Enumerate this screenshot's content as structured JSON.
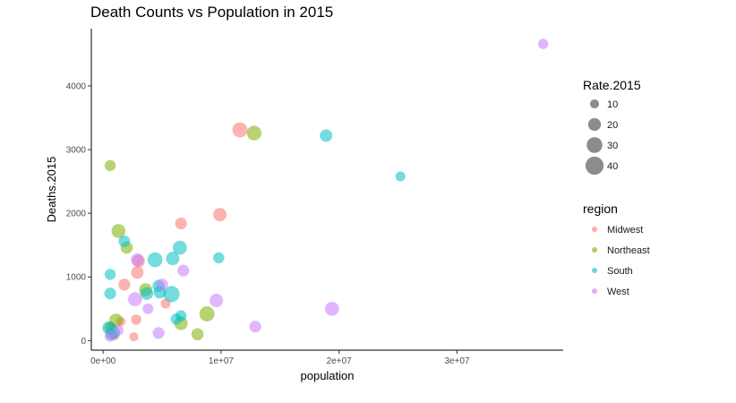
{
  "chart_data": {
    "type": "scatter",
    "title": "Death Counts vs Population in 2015",
    "xlabel": "population",
    "ylabel": "Deaths.2015",
    "xlim": [
      -1000000,
      39000000
    ],
    "ylim": [
      -150,
      4900
    ],
    "x_ticks": [
      0,
      10000000,
      20000000,
      30000000
    ],
    "x_tick_labels": [
      "0e+00",
      "1e+07",
      "2e+07",
      "3e+07"
    ],
    "y_ticks": [
      0,
      1000,
      2000,
      3000,
      4000
    ],
    "y_tick_labels": [
      "0",
      "1000",
      "2000",
      "3000",
      "4000"
    ],
    "grid": false,
    "size_legend": {
      "title": "Rate.2015",
      "values": [
        10,
        20,
        30,
        40
      ],
      "labels": [
        "10",
        "20",
        "30",
        "40"
      ]
    },
    "color_legend": {
      "title": "region",
      "position": "right",
      "entries": [
        {
          "label": "Midwest",
          "color": "#F8766D"
        },
        {
          "label": "Northeast",
          "color": "#7CAE00"
        },
        {
          "label": "South",
          "color": "#00BFC4"
        },
        {
          "label": "West",
          "color": "#C77CFF"
        }
      ]
    },
    "series": [
      {
        "region": "Midwest",
        "points": [
          {
            "x": 11600000,
            "y": 3310,
            "rate": 28
          },
          {
            "x": 9900000,
            "y": 1980,
            "rate": 22
          },
          {
            "x": 6600000,
            "y": 1840,
            "rate": 17
          },
          {
            "x": 3000000,
            "y": 1250,
            "rate": 20
          },
          {
            "x": 2900000,
            "y": 1070,
            "rate": 19
          },
          {
            "x": 1800000,
            "y": 880,
            "rate": 17
          },
          {
            "x": 5300000,
            "y": 580,
            "rate": 12
          },
          {
            "x": 2800000,
            "y": 330,
            "rate": 13
          },
          {
            "x": 1500000,
            "y": 300,
            "rate": 11
          },
          {
            "x": 2600000,
            "y": 60,
            "rate": 10
          },
          {
            "x": 1000000,
            "y": 80,
            "rate": 10
          },
          {
            "x": 700000,
            "y": 210,
            "rate": 12
          }
        ]
      },
      {
        "region": "Northeast",
        "points": [
          {
            "x": 12800000,
            "y": 3260,
            "rate": 26
          },
          {
            "x": 600000,
            "y": 2750,
            "rate": 15
          },
          {
            "x": 1300000,
            "y": 1720,
            "rate": 24
          },
          {
            "x": 2000000,
            "y": 1460,
            "rate": 18
          },
          {
            "x": 3600000,
            "y": 800,
            "rate": 21
          },
          {
            "x": 8800000,
            "y": 420,
            "rate": 28
          },
          {
            "x": 6600000,
            "y": 270,
            "rate": 22
          },
          {
            "x": 8000000,
            "y": 100,
            "rate": 18
          },
          {
            "x": 1100000,
            "y": 320,
            "rate": 22
          },
          {
            "x": 600000,
            "y": 200,
            "rate": 17
          }
        ]
      },
      {
        "region": "South",
        "points": [
          {
            "x": 18900000,
            "y": 3220,
            "rate": 19
          },
          {
            "x": 25200000,
            "y": 2580,
            "rate": 12
          },
          {
            "x": 1800000,
            "y": 1560,
            "rate": 16
          },
          {
            "x": 6500000,
            "y": 1460,
            "rate": 24
          },
          {
            "x": 4400000,
            "y": 1270,
            "rate": 27
          },
          {
            "x": 5900000,
            "y": 1290,
            "rate": 22
          },
          {
            "x": 9800000,
            "y": 1300,
            "rate": 15
          },
          {
            "x": 600000,
            "y": 1040,
            "rate": 15
          },
          {
            "x": 4700000,
            "y": 860,
            "rate": 18
          },
          {
            "x": 3700000,
            "y": 740,
            "rate": 20
          },
          {
            "x": 4800000,
            "y": 760,
            "rate": 19
          },
          {
            "x": 5800000,
            "y": 730,
            "rate": 32
          },
          {
            "x": 600000,
            "y": 740,
            "rate": 17
          },
          {
            "x": 6600000,
            "y": 390,
            "rate": 15
          },
          {
            "x": 6200000,
            "y": 340,
            "rate": 15
          },
          {
            "x": 500000,
            "y": 200,
            "rate": 22
          },
          {
            "x": 900000,
            "y": 130,
            "rate": 20
          },
          {
            "x": 700000,
            "y": 100,
            "rate": 17
          }
        ]
      },
      {
        "region": "West",
        "points": [
          {
            "x": 37300000,
            "y": 4660,
            "rate": 13
          },
          {
            "x": 6800000,
            "y": 1100,
            "rate": 17
          },
          {
            "x": 2900000,
            "y": 1270,
            "rate": 20
          },
          {
            "x": 5000000,
            "y": 880,
            "rate": 17
          },
          {
            "x": 2700000,
            "y": 650,
            "rate": 24
          },
          {
            "x": 9600000,
            "y": 630,
            "rate": 22
          },
          {
            "x": 3800000,
            "y": 500,
            "rate": 14
          },
          {
            "x": 19400000,
            "y": 500,
            "rate": 24
          },
          {
            "x": 12900000,
            "y": 220,
            "rate": 17
          },
          {
            "x": 4700000,
            "y": 120,
            "rate": 17
          },
          {
            "x": 1300000,
            "y": 160,
            "rate": 13
          },
          {
            "x": 600000,
            "y": 70,
            "rate": 15
          }
        ]
      }
    ]
  }
}
